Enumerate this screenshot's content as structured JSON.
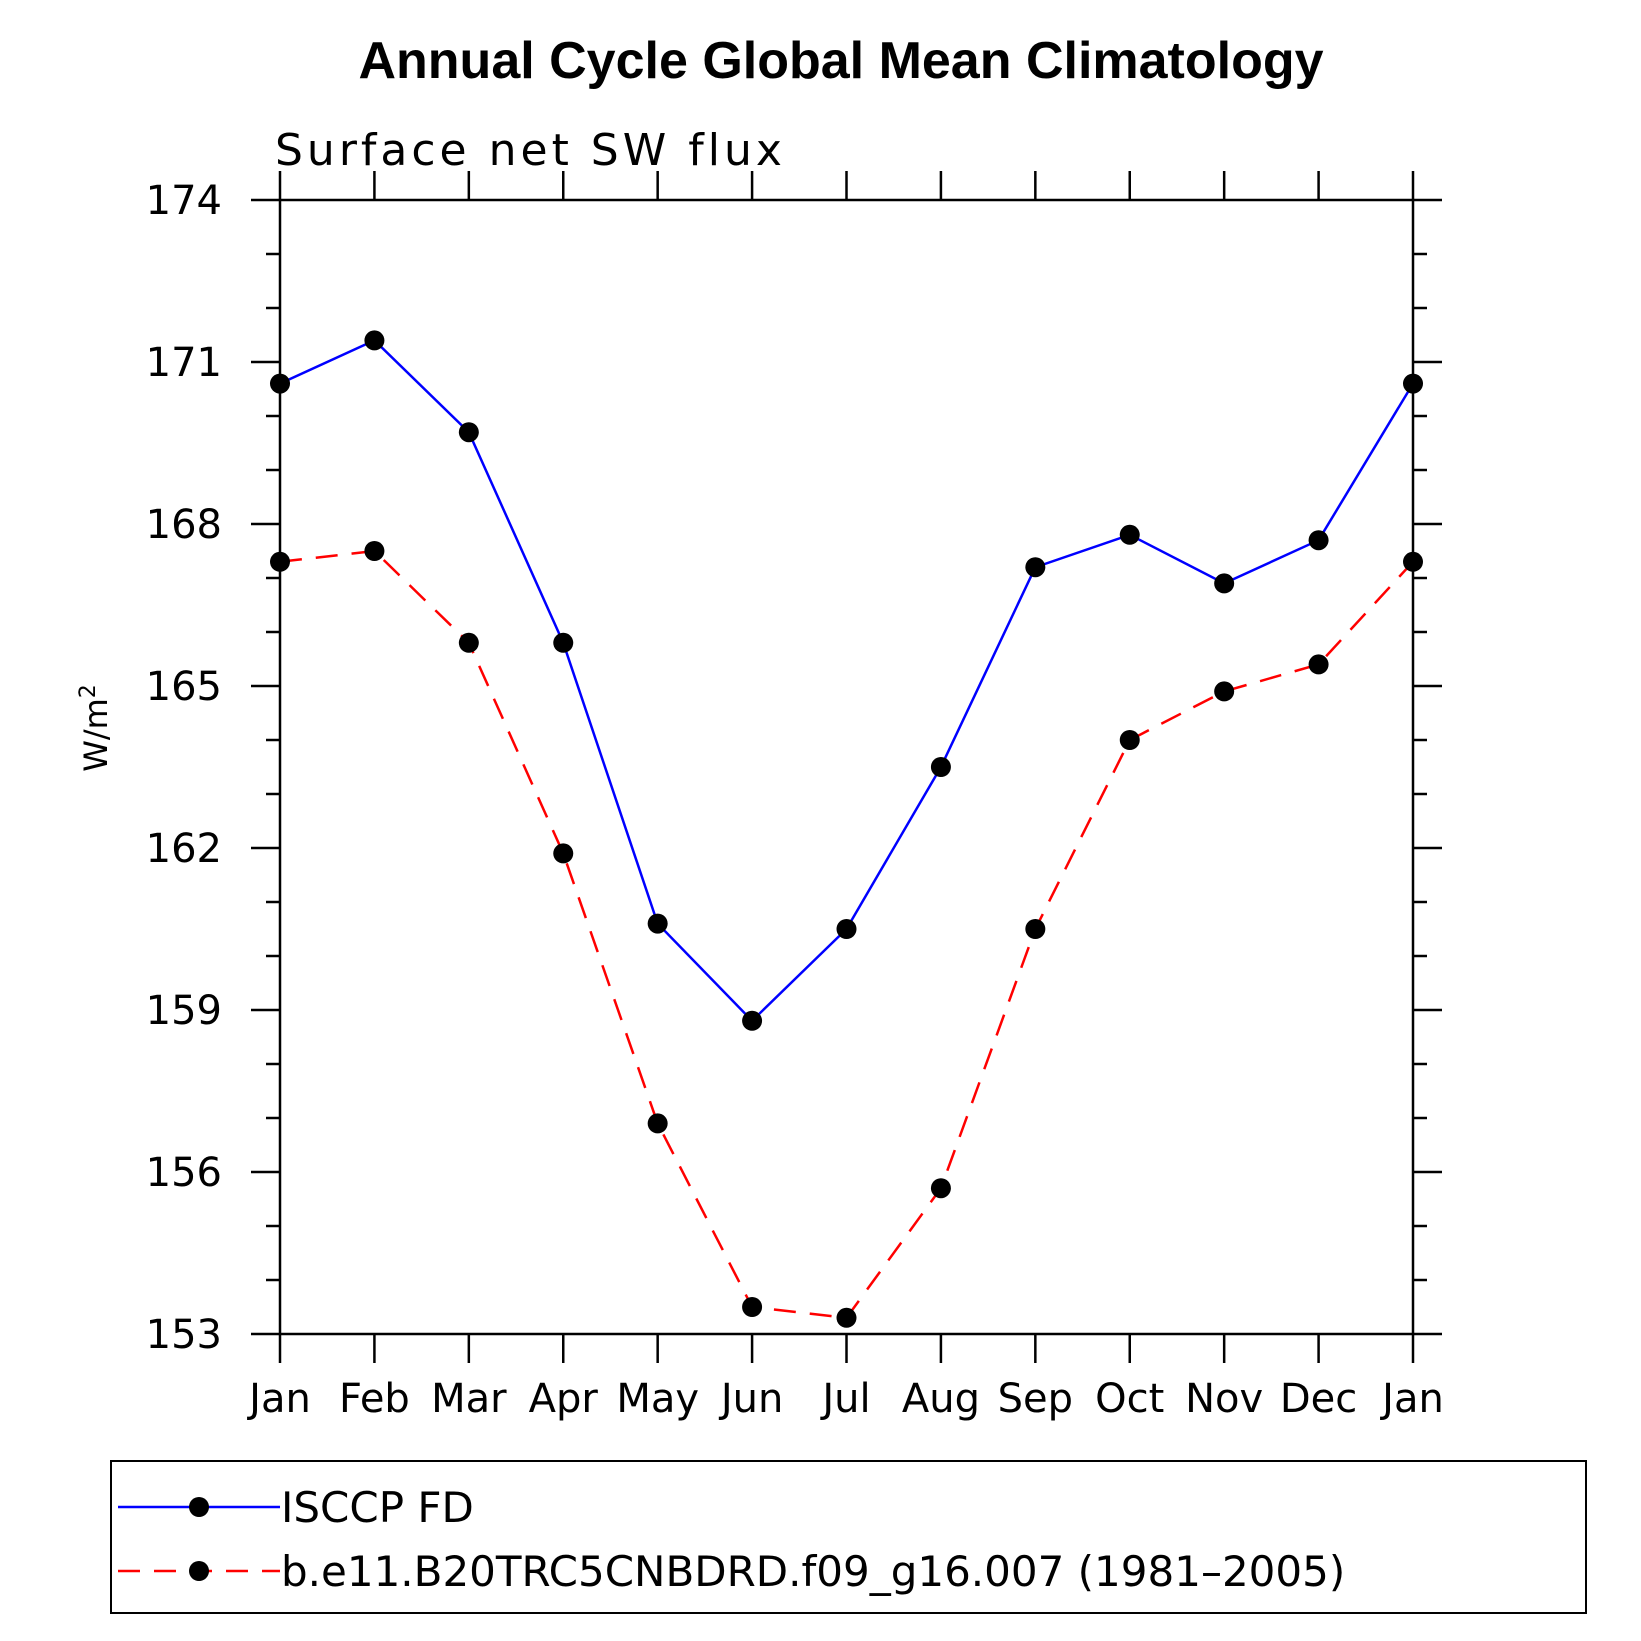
{
  "chart_data": {
    "type": "line",
    "title": "Annual Cycle Global Mean Climatology",
    "subtitle": "Surface net SW flux",
    "xlabel": "",
    "ylabel": "W/m",
    "ylabel_superscript": "2",
    "categories": [
      "Jan",
      "Feb",
      "Mar",
      "Apr",
      "May",
      "Jun",
      "Jul",
      "Aug",
      "Sep",
      "Oct",
      "Nov",
      "Dec",
      "Jan"
    ],
    "ylim": [
      153,
      174
    ],
    "yticks": [
      153,
      156,
      159,
      162,
      165,
      168,
      171,
      174
    ],
    "grid": false,
    "legend_placement": "bottom",
    "series": [
      {
        "name": "ISCCP FD",
        "color": "#0000ff",
        "style": "solid",
        "values": [
          170.6,
          171.4,
          169.7,
          165.8,
          160.6,
          158.8,
          160.5,
          163.5,
          167.2,
          167.8,
          166.9,
          167.7,
          170.6
        ]
      },
      {
        "name": "b.e11.B20TRC5CNBDRD.f09_g16.007 (1981–2005)",
        "color": "#ff0000",
        "style": "dashed",
        "values": [
          167.3,
          167.5,
          165.8,
          161.9,
          156.9,
          153.5,
          153.3,
          155.7,
          160.5,
          164.0,
          164.9,
          165.4,
          167.3
        ]
      }
    ]
  }
}
